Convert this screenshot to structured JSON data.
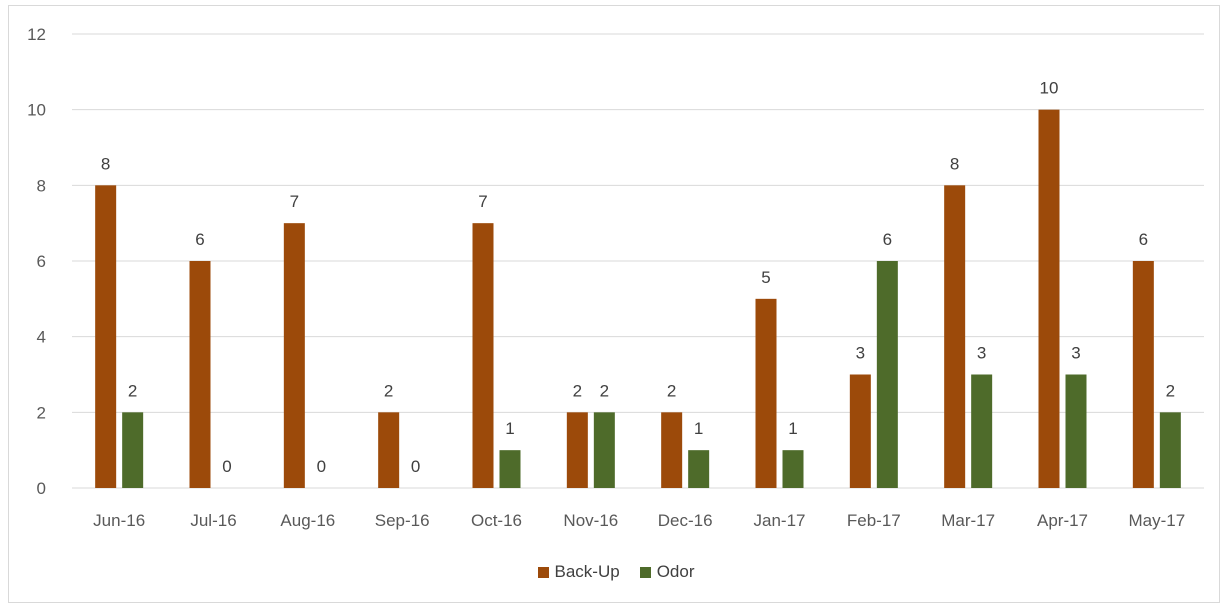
{
  "chart_data": {
    "type": "bar",
    "categories": [
      "Jun-16",
      "Jul-16",
      "Aug-16",
      "Sep-16",
      "Oct-16",
      "Nov-16",
      "Dec-16",
      "Jan-17",
      "Feb-17",
      "Mar-17",
      "Apr-17",
      "May-17"
    ],
    "series": [
      {
        "name": "Back-Up",
        "values": [
          8,
          6,
          7,
          2,
          7,
          2,
          2,
          5,
          3,
          8,
          10,
          6
        ],
        "color": "#9c4a0a"
      },
      {
        "name": "Odor",
        "values": [
          2,
          0,
          0,
          0,
          1,
          2,
          1,
          1,
          6,
          3,
          3,
          2
        ],
        "color": "#4e6b2a"
      }
    ],
    "title": "",
    "xlabel": "",
    "ylabel": "",
    "ylim": [
      0,
      12
    ],
    "yticks": [
      0,
      2,
      4,
      6,
      8,
      10,
      12
    ],
    "grid": true,
    "legend_position": "bottom",
    "data_labels": true
  }
}
